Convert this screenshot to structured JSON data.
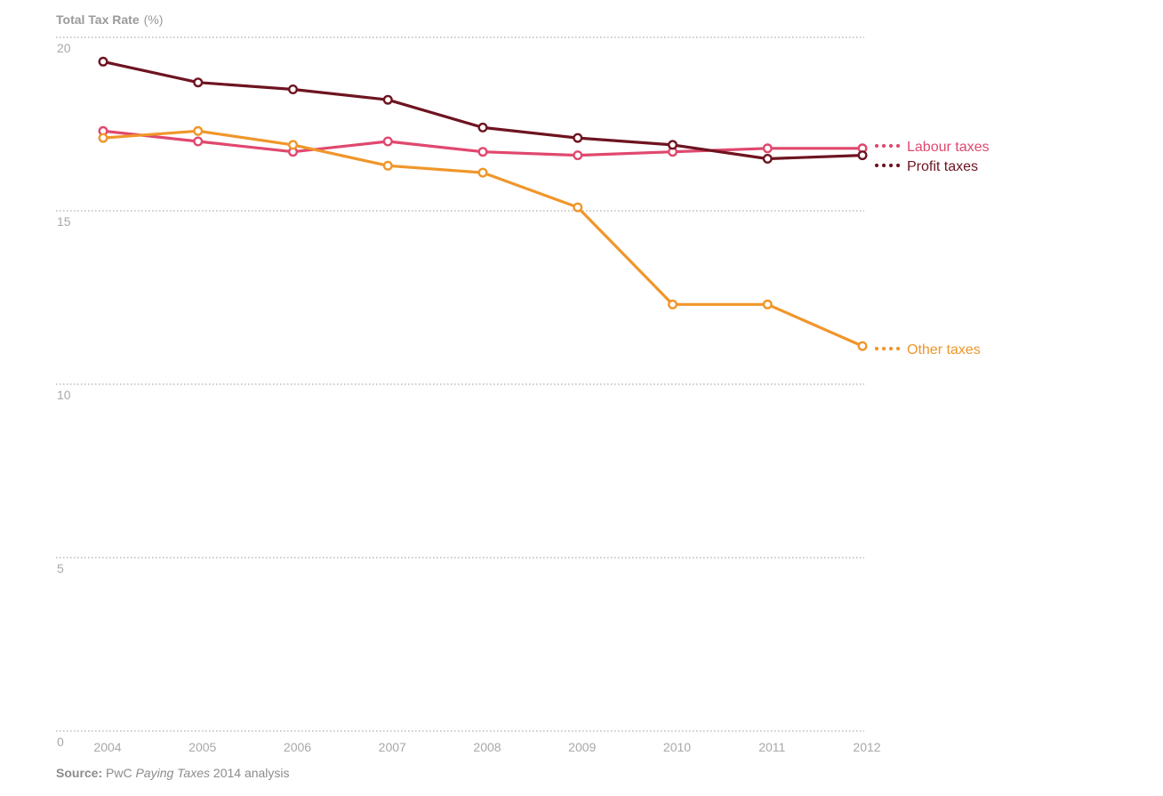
{
  "chart_data": {
    "type": "line",
    "ylabel_main": "Total Tax Rate",
    "ylabel_unit": "(%)",
    "ylim": [
      0,
      20
    ],
    "yticks": [
      0,
      5,
      10,
      15,
      20
    ],
    "grid": true,
    "legend_placement": "right, at line ends",
    "x": [
      "2004",
      "2005",
      "2006",
      "2007",
      "2008",
      "2009",
      "2010",
      "2011",
      "2012"
    ],
    "series": [
      {
        "name": "Labour taxes",
        "color": "#e0486e",
        "values": [
          17.3,
          17.0,
          16.7,
          17.0,
          16.7,
          16.6,
          16.7,
          16.8,
          16.8
        ]
      },
      {
        "name": "Profit taxes",
        "color": "#6e1420",
        "values": [
          19.3,
          18.7,
          18.5,
          18.2,
          17.4,
          17.1,
          16.9,
          16.5,
          16.6
        ]
      },
      {
        "name": "Other taxes",
        "color": "#f0962a",
        "values": [
          17.1,
          17.3,
          16.9,
          16.3,
          16.1,
          15.1,
          12.3,
          12.3,
          11.1
        ]
      }
    ]
  },
  "source": {
    "label": "Source:",
    "publisher": "PwC",
    "title": "Paying Taxes",
    "suffix": "2014 analysis"
  }
}
